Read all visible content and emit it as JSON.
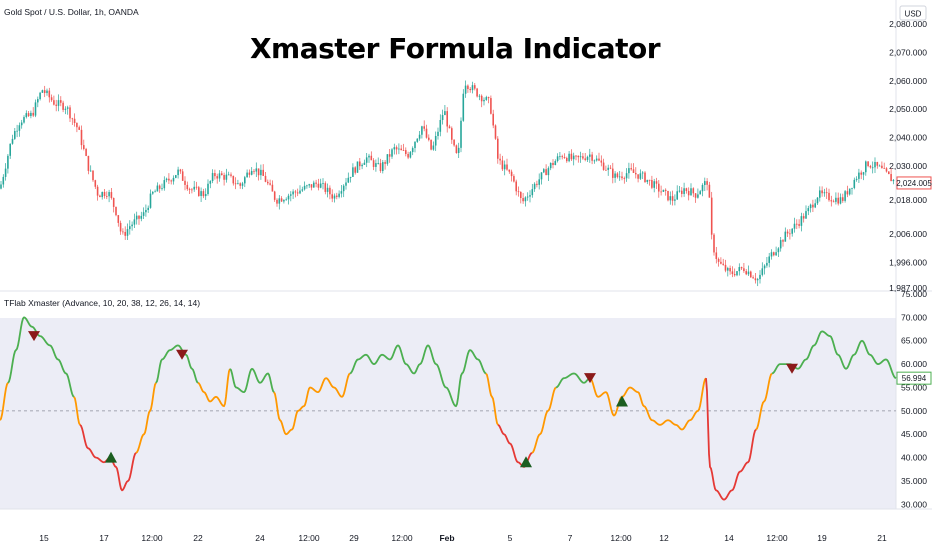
{
  "chart_data": [
    {
      "type": "candlestick",
      "header": "Gold Spot / U.S. Dollar, 1h, OANDA",
      "title": "Xmaster Formula Indicator",
      "currency": "USD",
      "price_labels": [
        "2,080.000",
        "2,070.000",
        "2,060.000",
        "2,050.000",
        "2,040.000",
        "2,030.000",
        "2,018.000",
        "2,006.000",
        "1,996.000",
        "1,987.000"
      ],
      "current_price": "2,024.005",
      "ylim": [
        1987,
        2080
      ],
      "colors": {
        "up": "#26a69a",
        "down": "#ef5350",
        "last_price": "#ef5350"
      },
      "path": [
        [
          0,
          2022
        ],
        [
          12,
          2040
        ],
        [
          20,
          2046
        ],
        [
          32,
          2048
        ],
        [
          42,
          2057
        ],
        [
          55,
          2052
        ],
        [
          66,
          2051
        ],
        [
          78,
          2043
        ],
        [
          88,
          2030
        ],
        [
          98,
          2020
        ],
        [
          108,
          2021
        ],
        [
          116,
          2014
        ],
        [
          122,
          2005
        ],
        [
          130,
          2009
        ],
        [
          144,
          2013
        ],
        [
          152,
          2020
        ],
        [
          162,
          2023
        ],
        [
          178,
          2028
        ],
        [
          190,
          2022
        ],
        [
          204,
          2020
        ],
        [
          214,
          2027
        ],
        [
          228,
          2026
        ],
        [
          240,
          2023
        ],
        [
          252,
          2030
        ],
        [
          264,
          2026
        ],
        [
          276,
          2018
        ],
        [
          290,
          2020
        ],
        [
          304,
          2022
        ],
        [
          318,
          2024
        ],
        [
          334,
          2019
        ],
        [
          352,
          2028
        ],
        [
          366,
          2033
        ],
        [
          380,
          2029
        ],
        [
          394,
          2036
        ],
        [
          408,
          2034
        ],
        [
          422,
          2044
        ],
        [
          432,
          2035
        ],
        [
          444,
          2050
        ],
        [
          452,
          2038
        ],
        [
          458,
          2032
        ],
        [
          464,
          2060
        ],
        [
          476,
          2056
        ],
        [
          490,
          2052
        ],
        [
          498,
          2032
        ],
        [
          512,
          2026
        ],
        [
          522,
          2017
        ],
        [
          536,
          2024
        ],
        [
          550,
          2030
        ],
        [
          562,
          2034
        ],
        [
          574,
          2032
        ],
        [
          590,
          2034
        ],
        [
          604,
          2030
        ],
        [
          616,
          2026
        ],
        [
          630,
          2028
        ],
        [
          644,
          2026
        ],
        [
          658,
          2022
        ],
        [
          672,
          2018
        ],
        [
          684,
          2022
        ],
        [
          696,
          2020
        ],
        [
          708,
          2025
        ],
        [
          712,
          2003
        ],
        [
          718,
          1996
        ],
        [
          730,
          1992
        ],
        [
          744,
          1994
        ],
        [
          758,
          1990
        ],
        [
          770,
          1998
        ],
        [
          784,
          2005
        ],
        [
          798,
          2010
        ],
        [
          808,
          2014
        ],
        [
          818,
          2020
        ],
        [
          828,
          2019
        ],
        [
          842,
          2018
        ],
        [
          856,
          2026
        ],
        [
          868,
          2031
        ],
        [
          880,
          2029
        ],
        [
          896,
          2024
        ]
      ]
    },
    {
      "type": "line",
      "header": "TFlab Xmaster (Advance, 10, 20, 38, 12, 26, 14, 14)",
      "y_labels": [
        "75.000",
        "70.000",
        "65.000",
        "60.000",
        "55.000",
        "50.000",
        "45.000",
        "40.000",
        "35.000",
        "30.000"
      ],
      "current_value": "56.994",
      "ylim": [
        29,
        75
      ],
      "midline": 50,
      "colors": {
        "bull": "#4caf50",
        "neutral": "#ff9800",
        "bear": "#e53935",
        "buy_marker": "#1b5e20",
        "sell_marker": "#8b1a1a"
      },
      "points": [
        [
          0,
          48
        ],
        [
          8,
          56
        ],
        [
          16,
          63
        ],
        [
          24,
          70
        ],
        [
          32,
          68
        ],
        [
          40,
          66
        ],
        [
          50,
          64
        ],
        [
          58,
          61
        ],
        [
          66,
          58
        ],
        [
          74,
          53
        ],
        [
          80,
          47
        ],
        [
          88,
          42
        ],
        [
          96,
          40
        ],
        [
          104,
          39
        ],
        [
          110,
          40
        ],
        [
          116,
          38
        ],
        [
          122,
          33
        ],
        [
          128,
          35
        ],
        [
          136,
          41
        ],
        [
          144,
          45
        ],
        [
          150,
          50
        ],
        [
          156,
          56
        ],
        [
          162,
          61
        ],
        [
          170,
          63
        ],
        [
          178,
          64
        ],
        [
          186,
          62
        ],
        [
          192,
          59
        ],
        [
          198,
          56
        ],
        [
          204,
          54
        ],
        [
          210,
          52
        ],
        [
          216,
          53
        ],
        [
          224,
          51
        ],
        [
          230,
          59
        ],
        [
          236,
          55
        ],
        [
          244,
          54
        ],
        [
          252,
          59
        ],
        [
          260,
          56
        ],
        [
          268,
          58
        ],
        [
          274,
          54
        ],
        [
          280,
          48
        ],
        [
          286,
          45
        ],
        [
          292,
          46
        ],
        [
          298,
          50
        ],
        [
          304,
          51
        ],
        [
          310,
          55
        ],
        [
          318,
          54
        ],
        [
          326,
          57
        ],
        [
          334,
          55
        ],
        [
          342,
          53
        ],
        [
          350,
          58
        ],
        [
          358,
          61
        ],
        [
          366,
          62
        ],
        [
          374,
          60
        ],
        [
          382,
          62
        ],
        [
          390,
          61
        ],
        [
          398,
          64
        ],
        [
          406,
          60
        ],
        [
          414,
          58
        ],
        [
          420,
          60
        ],
        [
          428,
          64
        ],
        [
          436,
          60
        ],
        [
          446,
          55
        ],
        [
          456,
          51
        ],
        [
          462,
          58
        ],
        [
          470,
          63
        ],
        [
          478,
          61
        ],
        [
          486,
          58
        ],
        [
          492,
          53
        ],
        [
          498,
          47
        ],
        [
          504,
          45
        ],
        [
          510,
          43
        ],
        [
          518,
          39
        ],
        [
          524,
          38
        ],
        [
          532,
          41
        ],
        [
          540,
          45
        ],
        [
          548,
          50
        ],
        [
          556,
          55
        ],
        [
          564,
          57
        ],
        [
          574,
          58
        ],
        [
          584,
          56
        ],
        [
          590,
          57
        ],
        [
          598,
          53
        ],
        [
          606,
          54
        ],
        [
          614,
          49
        ],
        [
          622,
          53
        ],
        [
          630,
          55
        ],
        [
          638,
          54
        ],
        [
          644,
          51
        ],
        [
          652,
          48
        ],
        [
          660,
          47
        ],
        [
          668,
          48
        ],
        [
          676,
          47
        ],
        [
          682,
          46
        ],
        [
          690,
          48
        ],
        [
          698,
          50
        ],
        [
          706,
          57
        ],
        [
          710,
          38
        ],
        [
          716,
          33
        ],
        [
          724,
          31
        ],
        [
          732,
          33
        ],
        [
          740,
          37
        ],
        [
          748,
          39
        ],
        [
          756,
          46
        ],
        [
          764,
          52
        ],
        [
          772,
          58
        ],
        [
          780,
          60
        ],
        [
          790,
          60
        ],
        [
          798,
          59
        ],
        [
          806,
          61
        ],
        [
          814,
          64
        ],
        [
          822,
          67
        ],
        [
          830,
          66
        ],
        [
          838,
          62
        ],
        [
          846,
          59
        ],
        [
          854,
          62
        ],
        [
          862,
          65
        ],
        [
          870,
          62
        ],
        [
          878,
          60
        ],
        [
          886,
          61
        ],
        [
          896,
          57
        ]
      ],
      "colored_segments": [
        [
          "neutral",
          0,
          8
        ],
        [
          "bull",
          8,
          74
        ],
        [
          "neutral",
          74,
          80
        ],
        [
          "bear",
          80,
          136
        ],
        [
          "neutral",
          136,
          156
        ],
        [
          "bull",
          156,
          198
        ],
        [
          "neutral",
          198,
          230
        ],
        [
          "bull",
          230,
          274
        ],
        [
          "neutral",
          274,
          350
        ],
        [
          "bull",
          350,
          486
        ],
        [
          "neutral",
          486,
          498
        ],
        [
          "bear",
          498,
          532
        ],
        [
          "neutral",
          532,
          556
        ],
        [
          "bull",
          556,
          590
        ],
        [
          "neutral",
          590,
          706
        ],
        [
          "bear",
          706,
          756
        ],
        [
          "neutral",
          756,
          772
        ],
        [
          "bull",
          772,
          896
        ]
      ],
      "sell_signals": [
        [
          34,
          66
        ],
        [
          182,
          62
        ],
        [
          590,
          57
        ],
        [
          792,
          59
        ]
      ],
      "buy_signals": [
        [
          111,
          40
        ],
        [
          526,
          39
        ],
        [
          622,
          52
        ]
      ]
    }
  ],
  "x_labels": [
    {
      "x": 44,
      "text": "15"
    },
    {
      "x": 104,
      "text": "17"
    },
    {
      "x": 152,
      "text": "12:00"
    },
    {
      "x": 198,
      "text": "22"
    },
    {
      "x": 260,
      "text": "24"
    },
    {
      "x": 309,
      "text": "12:00"
    },
    {
      "x": 354,
      "text": "29"
    },
    {
      "x": 402,
      "text": "12:00"
    },
    {
      "x": 447,
      "text": "Feb"
    },
    {
      "x": 510,
      "text": "5"
    },
    {
      "x": 570,
      "text": "7"
    },
    {
      "x": 621,
      "text": "12:00"
    },
    {
      "x": 664,
      "text": "12"
    },
    {
      "x": 729,
      "text": "14"
    },
    {
      "x": 777,
      "text": "12:00"
    },
    {
      "x": 822,
      "text": "19"
    },
    {
      "x": 882,
      "text": "21"
    }
  ]
}
